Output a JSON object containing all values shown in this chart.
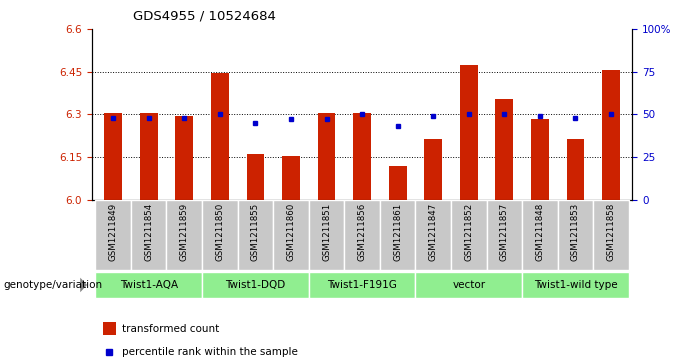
{
  "title": "GDS4955 / 10524684",
  "samples": [
    "GSM1211849",
    "GSM1211854",
    "GSM1211859",
    "GSM1211850",
    "GSM1211855",
    "GSM1211860",
    "GSM1211851",
    "GSM1211856",
    "GSM1211861",
    "GSM1211847",
    "GSM1211852",
    "GSM1211857",
    "GSM1211848",
    "GSM1211853",
    "GSM1211858"
  ],
  "red_values": [
    6.305,
    6.305,
    6.295,
    6.445,
    6.16,
    6.155,
    6.305,
    6.305,
    6.12,
    6.215,
    6.475,
    6.355,
    6.285,
    6.215,
    6.455
  ],
  "blue_values": [
    48,
    48,
    48,
    50,
    45,
    47,
    47,
    50,
    43,
    49,
    50,
    50,
    49,
    48,
    50
  ],
  "group_boundaries": [
    [
      0,
      2,
      "Twist1-AQA"
    ],
    [
      3,
      5,
      "Twist1-DQD"
    ],
    [
      6,
      8,
      "Twist1-F191G"
    ],
    [
      9,
      11,
      "vector"
    ],
    [
      12,
      14,
      "Twist1-wild type"
    ]
  ],
  "ylim_left": [
    6.0,
    6.6
  ],
  "ylim_right": [
    0,
    100
  ],
  "yticks_left": [
    6.0,
    6.15,
    6.3,
    6.45,
    6.6
  ],
  "yticks_right": [
    0,
    25,
    50,
    75,
    100
  ],
  "yticklabels_right": [
    "0",
    "25",
    "50",
    "75",
    "100%"
  ],
  "grid_lines": [
    6.15,
    6.3,
    6.45
  ],
  "bar_color": "#cc2200",
  "dot_color": "#0000cc",
  "sample_bg": "#c8c8c8",
  "group_bg": "#90ee90",
  "genotype_label": "genotype/variation",
  "legend_red": "transformed count",
  "legend_blue": "percentile rank within the sample",
  "bar_width": 0.5
}
